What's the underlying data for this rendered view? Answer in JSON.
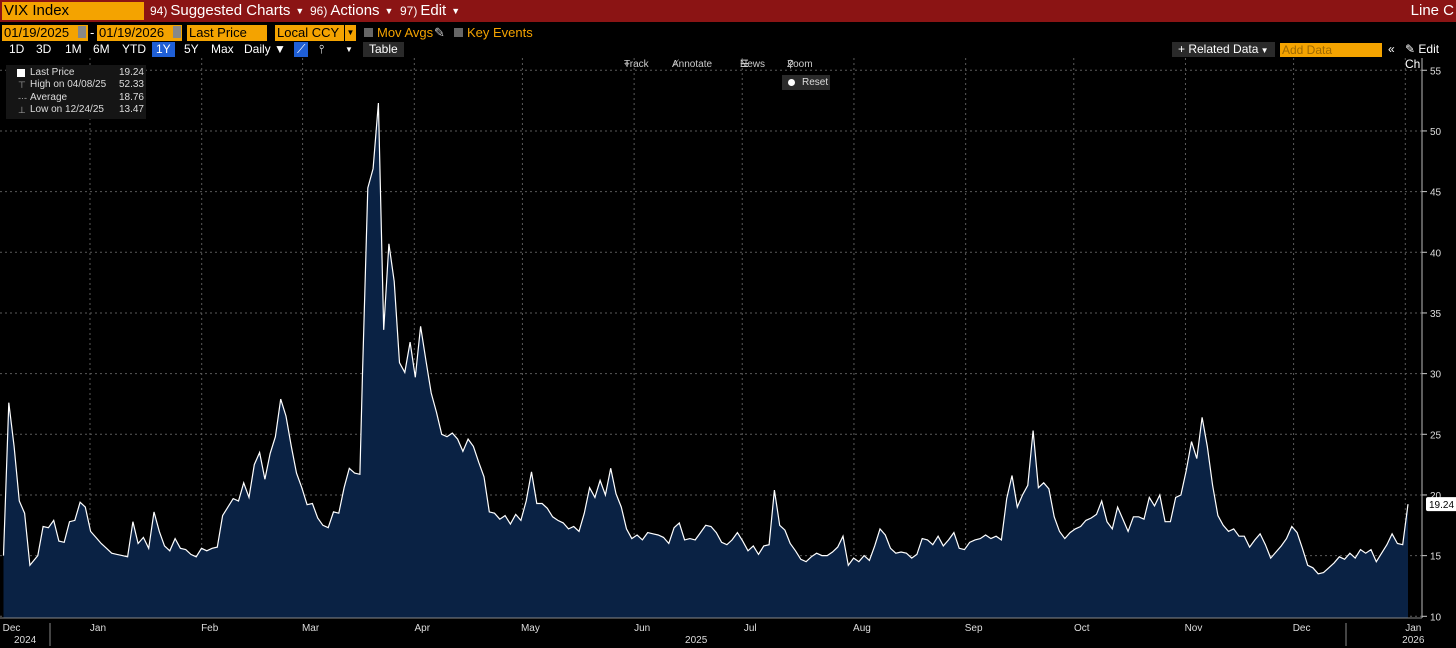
{
  "header": {
    "ticker": "VIX Index",
    "menus": [
      {
        "num": "94)",
        "label": "Suggested Charts"
      },
      {
        "num": "96)",
        "label": "Actions"
      },
      {
        "num": "97)",
        "label": "Edit"
      }
    ],
    "right_title": "Line C"
  },
  "controls": {
    "start_date": "01/19/2025",
    "end_date": "01/19/2026",
    "date_sep": "-",
    "field": "Last Price",
    "currency": "Local CCY",
    "mov_avgs": "Mov Avgs",
    "key_events": "Key Events"
  },
  "periods": [
    "1D",
    "3D",
    "1M",
    "6M",
    "YTD",
    "1Y",
    "5Y",
    "Max"
  ],
  "active_period": "1Y",
  "frequency": "Daily",
  "table_label": "Table",
  "related_data": "Related Data",
  "add_data_placeholder": "Add Data",
  "edit_chart": "Edit Ch",
  "toolbar": {
    "track": "Track",
    "annotate": "Annotate",
    "news": "News",
    "zoom": "Zoom",
    "reset": "Reset"
  },
  "legend": {
    "last_label": "Last Price",
    "last_value": "19.24",
    "high_label": "High on 04/08/25",
    "high_value": "52.33",
    "avg_label": "Average",
    "avg_value": "18.76",
    "low_label": "Low on 12/24/25",
    "low_value": "13.47"
  },
  "colors": {
    "accent": "#f4a300",
    "titlebar": "#8b1414",
    "area_fill": "#0a2244",
    "line": "#ffffff"
  },
  "chart_data": {
    "type": "area",
    "series_name": "Last Price",
    "last_value_label": "19.24",
    "ylim": [
      10,
      55
    ],
    "y_ticks": [
      10,
      15,
      20,
      25,
      30,
      35,
      40,
      45,
      50,
      55
    ],
    "x_months": [
      {
        "label": "Dec",
        "day": 0
      },
      {
        "label": "Jan",
        "day": 24
      },
      {
        "label": "Feb",
        "day": 55
      },
      {
        "label": "Mar",
        "day": 83
      },
      {
        "label": "Apr",
        "day": 114
      },
      {
        "label": "May",
        "day": 144
      },
      {
        "label": "Jun",
        "day": 175
      },
      {
        "label": "Jul",
        "day": 205
      },
      {
        "label": "Aug",
        "day": 236
      },
      {
        "label": "Sep",
        "day": 267
      },
      {
        "label": "Oct",
        "day": 297
      },
      {
        "label": "Nov",
        "day": 328
      },
      {
        "label": "Dec",
        "day": 358
      },
      {
        "label": "Jan",
        "day": 389
      }
    ],
    "year_labels": [
      {
        "label": "2024",
        "day": 0
      },
      {
        "label": "2025",
        "day": 190
      },
      {
        "label": "2026",
        "day": 389
      }
    ],
    "points": [
      [
        0,
        15.0
      ],
      [
        2,
        27.6
      ],
      [
        4,
        24.0
      ],
      [
        6,
        19.5
      ],
      [
        8,
        18.5
      ],
      [
        10,
        14.2
      ],
      [
        13,
        15.0
      ],
      [
        15,
        17.4
      ],
      [
        17,
        17.3
      ],
      [
        19,
        17.9
      ],
      [
        21,
        16.2
      ],
      [
        23,
        16.1
      ],
      [
        25,
        17.8
      ],
      [
        27,
        17.9
      ],
      [
        29,
        19.4
      ],
      [
        31,
        19.0
      ],
      [
        33,
        17.0
      ],
      [
        35,
        16.5
      ],
      [
        37,
        16.0
      ],
      [
        39,
        15.6
      ],
      [
        41,
        15.2
      ],
      [
        43,
        15.1
      ],
      [
        45,
        15.0
      ],
      [
        47,
        14.9
      ],
      [
        49,
        17.8
      ],
      [
        51,
        16.0
      ],
      [
        53,
        16.5
      ],
      [
        55,
        15.6
      ],
      [
        57,
        18.6
      ],
      [
        59,
        17.0
      ],
      [
        61,
        15.8
      ],
      [
        63,
        15.4
      ],
      [
        65,
        16.4
      ],
      [
        67,
        15.6
      ],
      [
        69,
        15.5
      ],
      [
        71,
        15.1
      ],
      [
        73,
        14.9
      ],
      [
        75,
        15.6
      ],
      [
        77,
        15.4
      ],
      [
        79,
        15.6
      ],
      [
        81,
        15.7
      ],
      [
        83,
        18.3
      ],
      [
        85,
        19.0
      ],
      [
        87,
        19.7
      ],
      [
        89,
        19.5
      ],
      [
        91,
        21.0
      ],
      [
        93,
        19.8
      ],
      [
        95,
        22.5
      ],
      [
        97,
        23.5
      ],
      [
        99,
        21.3
      ],
      [
        101,
        23.4
      ],
      [
        103,
        24.8
      ],
      [
        105,
        27.9
      ],
      [
        107,
        26.5
      ],
      [
        109,
        24.0
      ],
      [
        111,
        21.8
      ],
      [
        113,
        20.6
      ],
      [
        115,
        19.2
      ],
      [
        117,
        19.3
      ],
      [
        119,
        18.1
      ],
      [
        121,
        17.5
      ],
      [
        123,
        17.3
      ],
      [
        125,
        18.6
      ],
      [
        127,
        18.5
      ],
      [
        129,
        20.6
      ],
      [
        131,
        22.2
      ],
      [
        133,
        21.8
      ],
      [
        135,
        21.7
      ],
      [
        136,
        30.0
      ],
      [
        138,
        45.3
      ],
      [
        140,
        46.9
      ],
      [
        142,
        52.3
      ],
      [
        144,
        33.6
      ],
      [
        146,
        40.7
      ],
      [
        148,
        37.6
      ],
      [
        150,
        30.9
      ],
      [
        152,
        30.1
      ],
      [
        154,
        32.6
      ],
      [
        156,
        29.7
      ],
      [
        158,
        33.9
      ],
      [
        160,
        31.1
      ],
      [
        162,
        28.4
      ],
      [
        164,
        26.8
      ],
      [
        166,
        25.0
      ],
      [
        168,
        24.8
      ],
      [
        170,
        25.1
      ],
      [
        172,
        24.6
      ],
      [
        174,
        23.6
      ],
      [
        176,
        24.6
      ],
      [
        178,
        24.0
      ],
      [
        180,
        22.7
      ],
      [
        182,
        21.5
      ],
      [
        184,
        18.6
      ],
      [
        186,
        18.5
      ],
      [
        188,
        18.0
      ],
      [
        190,
        18.3
      ],
      [
        192,
        17.6
      ],
      [
        194,
        18.4
      ],
      [
        196,
        17.9
      ],
      [
        198,
        19.5
      ],
      [
        200,
        21.9
      ],
      [
        202,
        19.3
      ],
      [
        204,
        19.3
      ],
      [
        206,
        18.9
      ],
      [
        208,
        18.2
      ],
      [
        210,
        17.9
      ],
      [
        212,
        17.7
      ],
      [
        214,
        17.2
      ],
      [
        216,
        17.4
      ],
      [
        218,
        17.0
      ],
      [
        220,
        18.5
      ],
      [
        222,
        20.6
      ],
      [
        224,
        19.8
      ],
      [
        226,
        21.2
      ],
      [
        228,
        20.0
      ],
      [
        230,
        22.2
      ],
      [
        232,
        20.1
      ],
      [
        234,
        19.0
      ],
      [
        236,
        17.2
      ],
      [
        238,
        16.4
      ],
      [
        240,
        16.7
      ],
      [
        242,
        16.3
      ],
      [
        244,
        16.9
      ],
      [
        246,
        16.8
      ],
      [
        248,
        16.7
      ],
      [
        250,
        16.5
      ],
      [
        252,
        16.0
      ],
      [
        254,
        17.3
      ],
      [
        256,
        17.7
      ],
      [
        258,
        16.3
      ],
      [
        260,
        16.4
      ],
      [
        262,
        16.3
      ],
      [
        264,
        16.9
      ],
      [
        266,
        17.5
      ],
      [
        268,
        17.4
      ],
      [
        270,
        16.9
      ],
      [
        272,
        16.1
      ],
      [
        274,
        15.9
      ],
      [
        276,
        16.3
      ],
      [
        278,
        16.9
      ],
      [
        280,
        16.2
      ],
      [
        282,
        15.4
      ],
      [
        284,
        15.8
      ],
      [
        286,
        15.1
      ],
      [
        288,
        15.8
      ],
      [
        290,
        15.9
      ],
      [
        292,
        20.4
      ],
      [
        294,
        17.5
      ],
      [
        296,
        17.1
      ],
      [
        298,
        16.0
      ],
      [
        300,
        15.4
      ],
      [
        302,
        14.7
      ],
      [
        304,
        14.5
      ],
      [
        306,
        14.9
      ],
      [
        308,
        15.2
      ],
      [
        310,
        15.0
      ],
      [
        312,
        15.0
      ],
      [
        314,
        15.3
      ],
      [
        316,
        15.7
      ],
      [
        318,
        16.6
      ],
      [
        320,
        14.2
      ],
      [
        322,
        14.8
      ],
      [
        324,
        14.5
      ],
      [
        326,
        15.0
      ],
      [
        328,
        14.6
      ],
      [
        330,
        15.8
      ],
      [
        332,
        17.2
      ],
      [
        334,
        16.7
      ],
      [
        336,
        15.6
      ],
      [
        338,
        15.2
      ],
      [
        340,
        15.3
      ],
      [
        342,
        15.2
      ],
      [
        344,
        14.8
      ],
      [
        346,
        15.1
      ],
      [
        348,
        16.4
      ],
      [
        350,
        16.3
      ],
      [
        352,
        15.9
      ],
      [
        354,
        16.6
      ],
      [
        356,
        15.8
      ],
      [
        358,
        16.3
      ],
      [
        360,
        16.9
      ],
      [
        362,
        15.6
      ],
      [
        364,
        15.5
      ],
      [
        366,
        16.1
      ],
      [
        368,
        16.3
      ],
      [
        370,
        16.4
      ],
      [
        372,
        16.7
      ],
      [
        374,
        16.4
      ],
      [
        376,
        16.6
      ],
      [
        378,
        16.3
      ],
      [
        380,
        19.7
      ],
      [
        382,
        21.6
      ],
      [
        384,
        19.0
      ],
      [
        386,
        20.0
      ],
      [
        388,
        20.8
      ],
      [
        390,
        25.3
      ],
      [
        392,
        20.6
      ],
      [
        394,
        21.0
      ],
      [
        396,
        20.5
      ],
      [
        398,
        18.2
      ],
      [
        400,
        17.0
      ],
      [
        402,
        16.4
      ],
      [
        404,
        16.9
      ],
      [
        406,
        17.2
      ],
      [
        408,
        17.4
      ],
      [
        410,
        17.9
      ],
      [
        412,
        18.1
      ],
      [
        414,
        18.4
      ],
      [
        416,
        19.5
      ],
      [
        418,
        17.8
      ],
      [
        420,
        17.2
      ],
      [
        422,
        19.0
      ],
      [
        424,
        18.0
      ],
      [
        426,
        17.0
      ],
      [
        428,
        18.2
      ],
      [
        430,
        18.2
      ],
      [
        432,
        18.0
      ],
      [
        434,
        19.8
      ],
      [
        436,
        19.1
      ],
      [
        438,
        20.0
      ],
      [
        440,
        17.8
      ],
      [
        442,
        17.8
      ],
      [
        444,
        19.8
      ],
      [
        446,
        20.0
      ],
      [
        448,
        22.0
      ],
      [
        450,
        24.4
      ],
      [
        452,
        23.0
      ],
      [
        454,
        26.4
      ],
      [
        456,
        24.0
      ],
      [
        458,
        20.8
      ],
      [
        460,
        18.3
      ],
      [
        462,
        17.5
      ],
      [
        464,
        17.0
      ],
      [
        466,
        17.2
      ],
      [
        468,
        16.6
      ],
      [
        470,
        16.6
      ],
      [
        472,
        15.7
      ],
      [
        474,
        16.3
      ],
      [
        476,
        16.8
      ],
      [
        478,
        15.9
      ],
      [
        480,
        14.8
      ],
      [
        482,
        15.3
      ],
      [
        484,
        15.8
      ],
      [
        486,
        16.4
      ],
      [
        488,
        17.4
      ],
      [
        490,
        16.9
      ],
      [
        492,
        15.6
      ],
      [
        494,
        14.2
      ],
      [
        496,
        14.0
      ],
      [
        498,
        13.5
      ],
      [
        500,
        13.6
      ],
      [
        502,
        14.0
      ],
      [
        504,
        14.4
      ],
      [
        506,
        14.9
      ],
      [
        508,
        14.7
      ],
      [
        510,
        15.2
      ],
      [
        512,
        14.8
      ],
      [
        514,
        15.5
      ],
      [
        516,
        15.2
      ],
      [
        518,
        15.5
      ],
      [
        520,
        14.5
      ],
      [
        522,
        15.2
      ],
      [
        524,
        15.9
      ],
      [
        526,
        16.8
      ],
      [
        528,
        16.0
      ],
      [
        530,
        15.9
      ],
      [
        532,
        19.24
      ]
    ]
  }
}
